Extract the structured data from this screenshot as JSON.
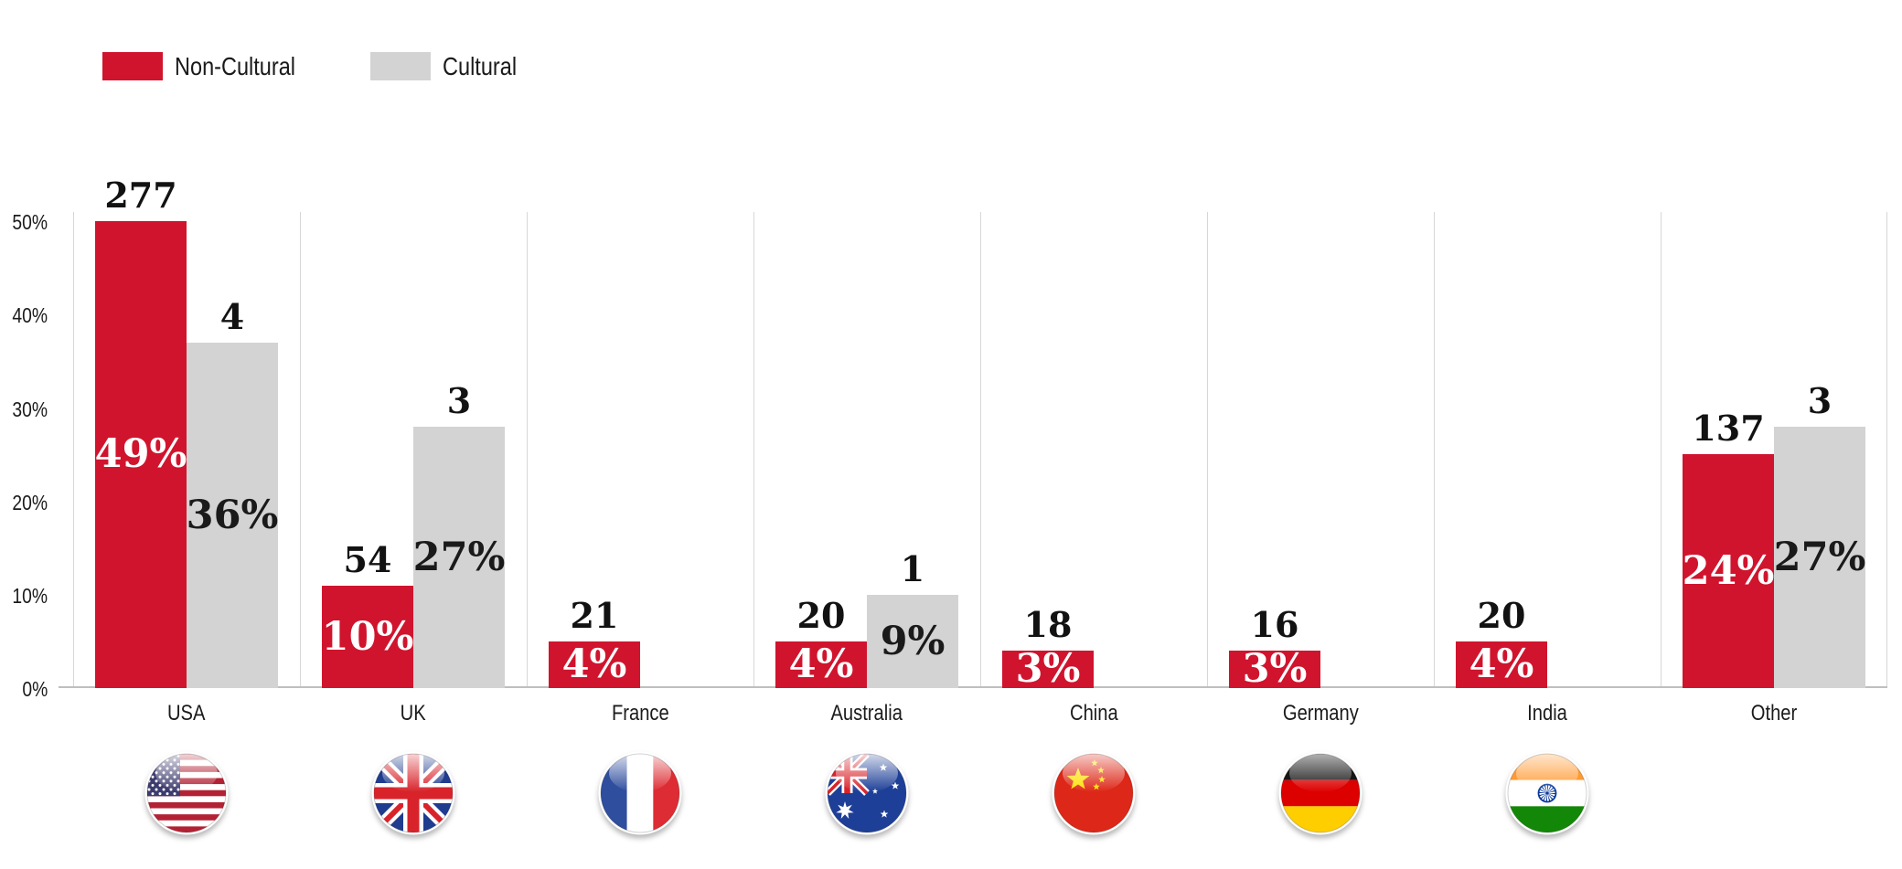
{
  "legend": {
    "items": [
      {
        "label": "Non-Cultural",
        "color": "#D0142E"
      },
      {
        "label": "Cultural",
        "color": "#D3D3D4"
      }
    ]
  },
  "chart_data": {
    "type": "bar",
    "title": "",
    "xlabel": "",
    "ylabel": "",
    "categories": [
      "USA",
      "UK",
      "France",
      "Australia",
      "China",
      "Germany",
      "India",
      "Other"
    ],
    "series": [
      {
        "name": "Non-Cultural",
        "color": "#D0142E",
        "pct_text_color": "#ffffff",
        "values": [
          277,
          54,
          21,
          20,
          18,
          16,
          20,
          137
        ],
        "pct_labels": [
          "49%",
          "10%",
          "4%",
          "4%",
          "3%",
          "3%",
          "4%",
          "24%"
        ],
        "bar_height_pct": [
          50,
          11,
          5,
          5,
          4,
          4,
          5,
          25
        ]
      },
      {
        "name": "Cultural",
        "color": "#D3D3D4",
        "pct_text_color": "#1a1a1a",
        "values": [
          4,
          3,
          null,
          1,
          null,
          null,
          null,
          3
        ],
        "pct_labels": [
          "36%",
          "27%",
          null,
          "9%",
          null,
          null,
          null,
          "27%"
        ],
        "bar_height_pct": [
          37,
          28,
          null,
          10,
          null,
          null,
          null,
          28
        ]
      }
    ],
    "yticks": [
      "50%",
      "40%",
      "30%",
      "20%",
      "10%",
      "0%"
    ],
    "ylim": [
      0,
      51
    ],
    "grid": "vertical category separators",
    "legend_position": "top-left"
  },
  "flags": [
    {
      "country": "USA",
      "icon": "flag-usa-icon"
    },
    {
      "country": "UK",
      "icon": "flag-uk-icon"
    },
    {
      "country": "France",
      "icon": "flag-france-icon"
    },
    {
      "country": "Australia",
      "icon": "flag-australia-icon"
    },
    {
      "country": "China",
      "icon": "flag-china-icon"
    },
    {
      "country": "Germany",
      "icon": "flag-germany-icon"
    },
    {
      "country": "India",
      "icon": "flag-india-icon"
    }
  ]
}
